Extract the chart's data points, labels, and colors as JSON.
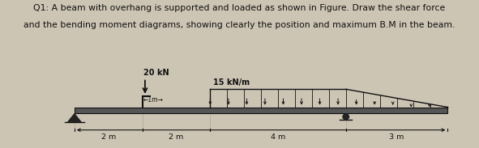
{
  "title_line1": "Q1: A beam with overhang is supported and loaded as shown in Figure. Draw the shear force",
  "title_line2": "and the bending moment diagrams, showing clearly the position and maximum B.M in the beam.",
  "bg_color": "#cdc5b4",
  "text_color": "#111111",
  "beam_color": "#333333",
  "load_color": "#111111",
  "dim_color": "#111111",
  "title_fontsize": 7.8,
  "label_fontsize": 7.0,
  "dim_fontsize": 6.8,
  "segment_labels": [
    "2 m",
    "2 m",
    "4 m",
    "3 m"
  ],
  "point_load_label": "20 kN",
  "dist_load_label": "15 kN/m",
  "moment_label": "↙1m→"
}
